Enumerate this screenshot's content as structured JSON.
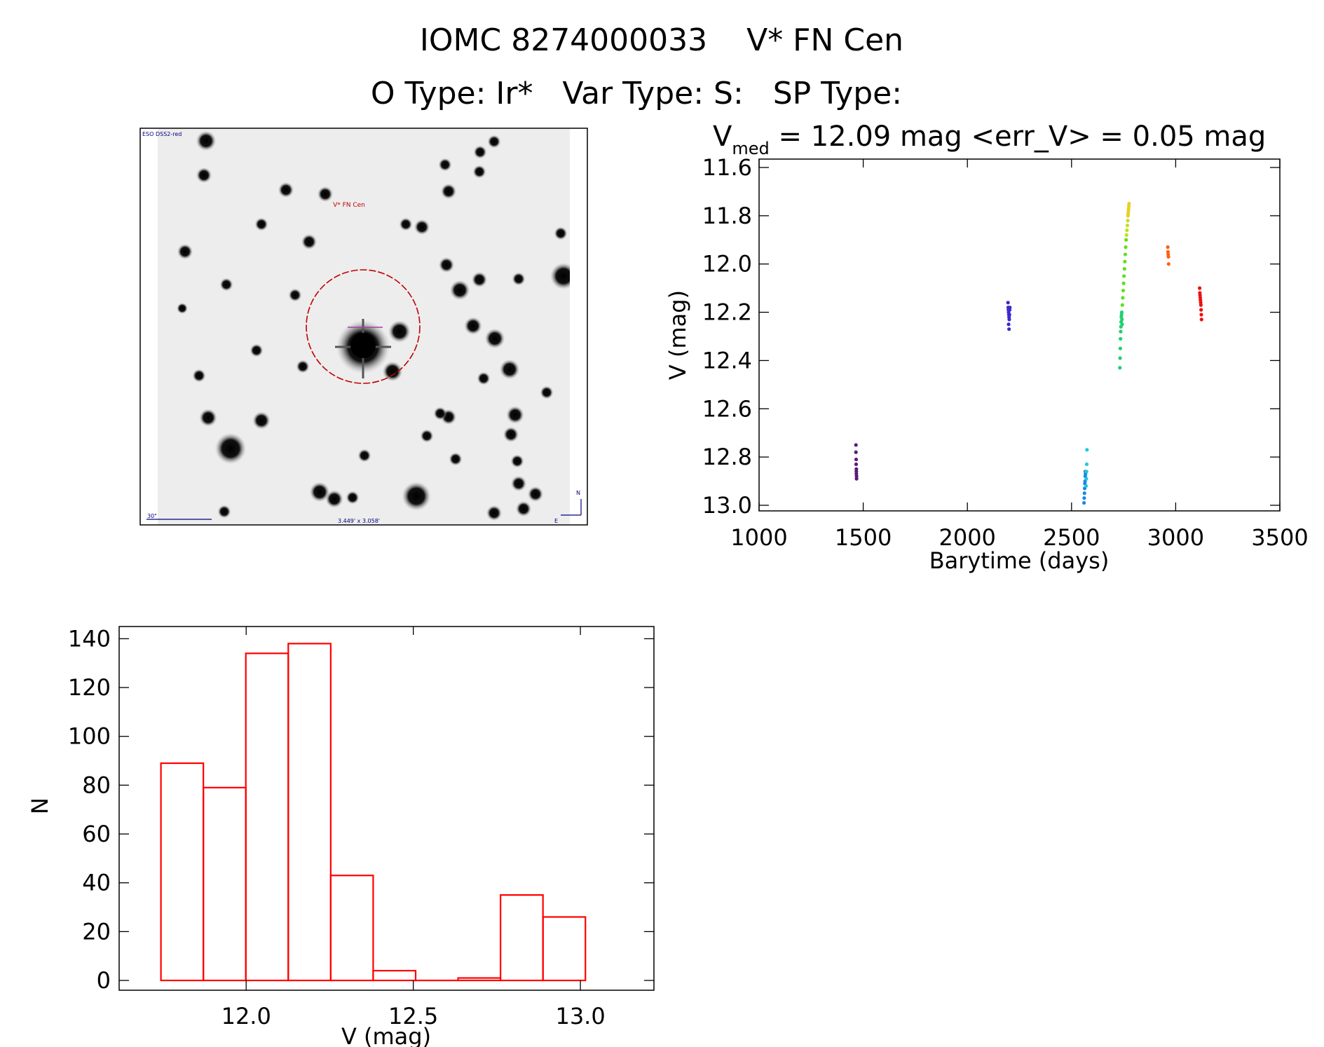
{
  "header": {
    "title": "IOMC 8274000033    V* FN Cen",
    "subtitle": "O Type: Ir*   Var Type: S:   SP Type:"
  },
  "image_panel": {
    "survey_label": "ESO DSS2-red",
    "target_label": "V* FN Cen",
    "scale_label": "30\"",
    "fov_label": "3.449' x 3.058'",
    "north_label": "N",
    "east_label": "E"
  },
  "lightcurve_panel": {
    "stat_prefix": "V",
    "stat_subscript": "med",
    "stat_rest": " = 12.09 mag <err_V> = 0.05 mag"
  },
  "colors": {
    "histogram": "#ff0000",
    "marker_circle": "#c00000",
    "label_blue": "#000080"
  },
  "chart_data": [
    {
      "type": "scatter",
      "title": "V med = 12.09 mag <err_V> = 0.05 mag",
      "xlabel": "Barytime (days)",
      "ylabel": "V (mag)",
      "xlim": [
        1000,
        3500
      ],
      "ylim": [
        13.0,
        11.6
      ],
      "y_inverted": true,
      "x_ticks": [
        1000,
        1500,
        2000,
        2500,
        3000,
        3500
      ],
      "x_tick_labels": [
        "1000",
        "1500",
        "2000",
        "2500",
        "3000",
        "3500"
      ],
      "y_ticks": [
        11.6,
        11.8,
        12.0,
        12.2,
        12.4,
        12.6,
        12.8,
        13.0
      ],
      "y_tick_labels": [
        "11.6",
        "11.8",
        "12.0",
        "12.2",
        "12.4",
        "12.6",
        "12.8",
        "13.0"
      ],
      "grid": false,
      "series": [
        {
          "color": "#5a1a7a",
          "x": [
            1465,
            1465,
            1466,
            1466,
            1467,
            1467,
            1467,
            1468,
            1468
          ],
          "y": [
            12.75,
            12.78,
            12.81,
            12.83,
            12.85,
            12.86,
            12.87,
            12.88,
            12.89
          ]
        },
        {
          "color": "#3a2ad0",
          "x": [
            2195,
            2196,
            2197,
            2198,
            2199,
            2200,
            2201,
            2202,
            2203,
            2204,
            2198,
            2200
          ],
          "y": [
            12.16,
            12.18,
            12.19,
            12.2,
            12.21,
            12.22,
            12.23,
            12.21,
            12.19,
            12.18,
            12.25,
            12.27
          ]
        },
        {
          "color": "#1a88e0",
          "x": [
            2560,
            2561,
            2562,
            2563,
            2564,
            2565,
            2566,
            2566,
            2567
          ],
          "y": [
            12.99,
            12.97,
            12.95,
            12.93,
            12.91,
            12.9,
            12.88,
            12.86,
            12.87
          ]
        },
        {
          "color": "#20c8e0",
          "x": [
            2570,
            2571,
            2572,
            2573,
            2574
          ],
          "y": [
            12.92,
            12.89,
            12.86,
            12.83,
            12.77
          ]
        },
        {
          "color": "#20d070",
          "x": [
            2732,
            2733,
            2734,
            2735,
            2736,
            2737,
            2738,
            2739,
            2740,
            2741,
            2742,
            2743
          ],
          "y": [
            12.43,
            12.39,
            12.35,
            12.31,
            12.28,
            12.26,
            12.24,
            12.22,
            12.21,
            12.2,
            12.23,
            12.25
          ]
        },
        {
          "color": "#60e020",
          "x": [
            2744,
            2746,
            2748,
            2750,
            2752,
            2754,
            2756,
            2758,
            2760,
            2762
          ],
          "y": [
            12.17,
            12.14,
            12.11,
            12.08,
            12.05,
            12.02,
            11.99,
            11.96,
            11.93,
            11.9
          ]
        },
        {
          "color": "#c0e020",
          "x": [
            2764,
            2766,
            2768,
            2770
          ],
          "y": [
            11.88,
            11.86,
            11.84,
            11.82
          ]
        },
        {
          "color": "#e8d020",
          "x": [
            2771,
            2772,
            2773,
            2774,
            2775,
            2776
          ],
          "y": [
            11.8,
            11.79,
            11.78,
            11.77,
            11.76,
            11.75
          ]
        },
        {
          "color": "#ff6010",
          "x": [
            2962,
            2963,
            2964,
            2965,
            2966
          ],
          "y": [
            11.93,
            11.95,
            11.96,
            11.97,
            12.0
          ]
        },
        {
          "color": "#ee1010",
          "x": [
            3115,
            3116,
            3117,
            3118,
            3119,
            3120,
            3121,
            3122,
            3123,
            3124
          ],
          "y": [
            12.1,
            12.12,
            12.13,
            12.14,
            12.15,
            12.16,
            12.17,
            12.19,
            12.21,
            12.23
          ]
        }
      ]
    },
    {
      "type": "bar",
      "title": "",
      "xlabel": "V (mag)",
      "ylabel": "N",
      "xlim": [
        11.62,
        13.22
      ],
      "ylim": [
        0,
        145
      ],
      "x_ticks": [
        12.0,
        12.5,
        13.0
      ],
      "x_tick_labels": [
        "12.0",
        "12.5",
        "13.0"
      ],
      "y_ticks": [
        0,
        20,
        40,
        60,
        80,
        100,
        120,
        140
      ],
      "y_tick_labels": [
        "0",
        "20",
        "40",
        "60",
        "80",
        "100",
        "120",
        "140"
      ],
      "grid": false,
      "bin_edges": [
        11.745,
        11.872,
        11.999,
        12.126,
        12.253,
        12.38,
        12.507,
        12.634,
        12.761,
        12.888,
        13.015
      ],
      "values": [
        89,
        79,
        134,
        138,
        43,
        4,
        0,
        1,
        35,
        26
      ]
    }
  ]
}
